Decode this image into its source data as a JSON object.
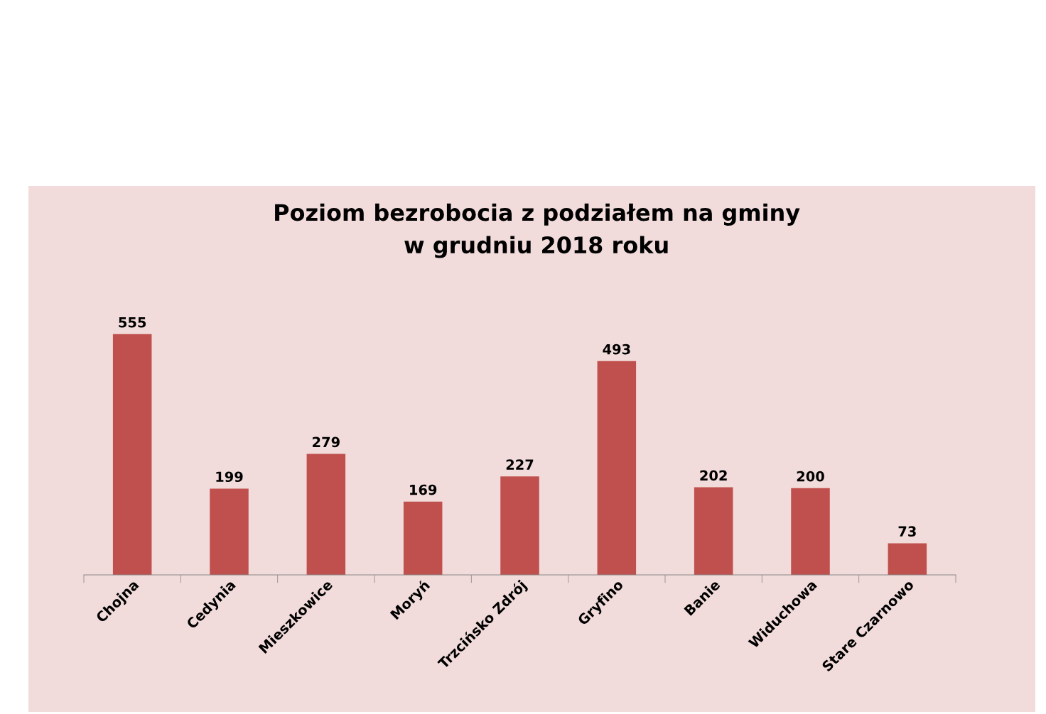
{
  "chart_data": {
    "type": "bar",
    "title": "Poziom bezrobocia z podziałem na gminy\nw grudniu 2018 roku",
    "categories": [
      "Chojna",
      "Cedynia",
      "Mieszkowice",
      "Moryń",
      "Trzcińsko Zdrój",
      "Gryfino",
      "Banie",
      "Widuchowa",
      "Stare Czarnowo"
    ],
    "values": [
      555,
      199,
      279,
      169,
      227,
      493,
      202,
      200,
      73
    ],
    "color": "#c0504d",
    "data_labels": true,
    "grid": false,
    "legend": false,
    "tick_labels": "x"
  }
}
